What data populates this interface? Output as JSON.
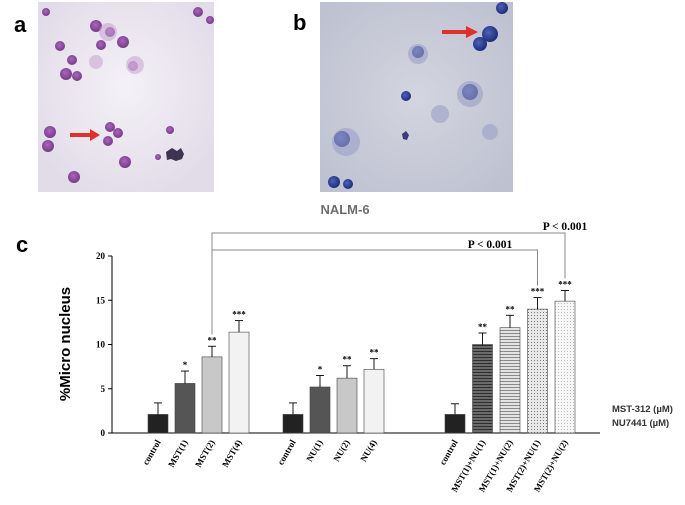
{
  "figure": {
    "panel_a_label": "a",
    "panel_b_label": "b",
    "panel_c_label": "c",
    "cell_line": "NALM-6",
    "legend_line1": "MST-312 (µM)",
    "legend_line2": "NU7441 (µM)"
  },
  "colors": {
    "micro_a_bg": "#ece8f1",
    "micro_a_cell": "#8b3f9e",
    "micro_b_bg": "#c9cbd8",
    "micro_b_cell": "#2f3f9a",
    "arrow": "#e0302b"
  },
  "chart_data": {
    "type": "bar",
    "ylabel": "%Micro nucleus",
    "ylim": [
      0,
      20
    ],
    "yticks": [
      0,
      5,
      10,
      15,
      20
    ],
    "groups": [
      {
        "bars": [
          {
            "label": "control",
            "value": 2.1,
            "err": 1.3,
            "sig": "",
            "fill": "#222222"
          },
          {
            "label": "MST(1)",
            "value": 5.6,
            "err": 1.4,
            "sig": "*",
            "fill": "#555555"
          },
          {
            "label": "MST(2)",
            "value": 8.6,
            "err": 1.2,
            "sig": "**",
            "fill": "#c8c8c8"
          },
          {
            "label": "MST(4)",
            "value": 11.4,
            "err": 1.3,
            "sig": "***",
            "fill": "#f2f2f2"
          }
        ]
      },
      {
        "bars": [
          {
            "label": "control",
            "value": 2.1,
            "err": 1.3,
            "sig": "",
            "fill": "#222222"
          },
          {
            "label": "NU(1)",
            "value": 5.2,
            "err": 1.3,
            "sig": "*",
            "fill": "#555555"
          },
          {
            "label": "NU(2)",
            "value": 6.2,
            "err": 1.4,
            "sig": "**",
            "fill": "#c8c8c8"
          },
          {
            "label": "NU(4)",
            "value": 7.2,
            "err": 1.2,
            "sig": "**",
            "fill": "#f2f2f2"
          }
        ]
      },
      {
        "bars": [
          {
            "label": "control",
            "value": 2.1,
            "err": 1.2,
            "sig": "",
            "fill": "#222222"
          },
          {
            "label": "MST(1)+NU(1)",
            "value": 10.0,
            "err": 1.3,
            "sig": "**",
            "fill": "#555555",
            "pattern": "hstripe-dark"
          },
          {
            "label": "MST(1)+NU(2)",
            "value": 11.9,
            "err": 1.4,
            "sig": "**",
            "fill": "#cfcfcf",
            "pattern": "hstripe-light"
          },
          {
            "label": "MST(2)+NU(1)",
            "value": 14.0,
            "err": 1.3,
            "sig": "***",
            "fill": "#dcdcdc",
            "pattern": "dots"
          },
          {
            "label": "MST(2)+NU(2)",
            "value": 14.9,
            "err": 1.2,
            "sig": "***",
            "fill": "#f4f4f4",
            "pattern": "fine"
          }
        ]
      }
    ],
    "comparisons": [
      {
        "from": [
          0,
          2
        ],
        "to": [
          2,
          3
        ],
        "label": "P < 0.001"
      },
      {
        "from": [
          0,
          2
        ],
        "to": [
          2,
          4
        ],
        "label": "P < 0.001"
      }
    ]
  }
}
